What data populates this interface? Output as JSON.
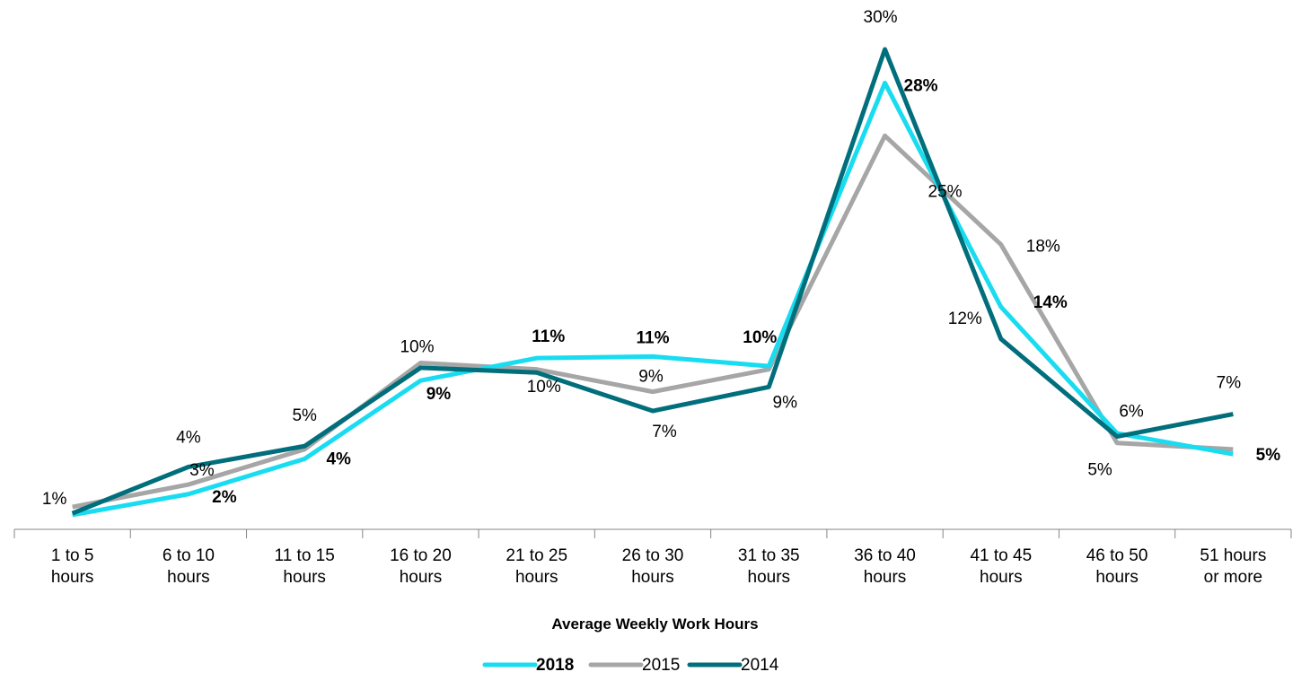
{
  "chart_data": {
    "type": "line",
    "x_label": "Average Weekly Work Hours",
    "categories": [
      "1 to 5 hours",
      "6 to 10 hours",
      "11 to 15 hours",
      "16 to 20 hours",
      "21 to 25 hours",
      "26 to 30 hours",
      "31 to 35 hours",
      "36 to 40 hours",
      "41 to 45 hours",
      "46 to 50 hours",
      "51 hours or more"
    ],
    "ylim": [
      0,
      30
    ],
    "legend": "bottom",
    "series": [
      {
        "name": "2018",
        "color": "#19dcf0",
        "bold": true,
        "values": [
          0.9,
          2.2,
          4.4,
          9.3,
          10.7,
          10.8,
          10.2,
          27.9,
          13.9,
          6.0,
          4.7
        ],
        "value_labels": [
          null,
          "2%",
          "4%",
          "9%",
          "11%",
          "11%",
          "10%",
          "28%",
          "14%",
          null,
          "5%"
        ]
      },
      {
        "name": "2015",
        "color": "#a6a6a6",
        "values": [
          1.4,
          2.8,
          5.0,
          10.4,
          10.0,
          8.6,
          10.0,
          24.6,
          17.8,
          5.4,
          5.0
        ],
        "value_labels": [
          "1%",
          "3%",
          "5%",
          "10%",
          null,
          "9%",
          null,
          "25%",
          "18%",
          "5%",
          null
        ]
      },
      {
        "name": "2014",
        "color": "#006e7b",
        "values": [
          1.0,
          3.9,
          5.2,
          10.1,
          9.8,
          7.4,
          8.9,
          30.0,
          11.9,
          5.8,
          7.2
        ],
        "value_labels": [
          null,
          "4%",
          null,
          null,
          "10%",
          "7%",
          "9%",
          "30%",
          "12%",
          "6%",
          "7%"
        ]
      }
    ]
  }
}
